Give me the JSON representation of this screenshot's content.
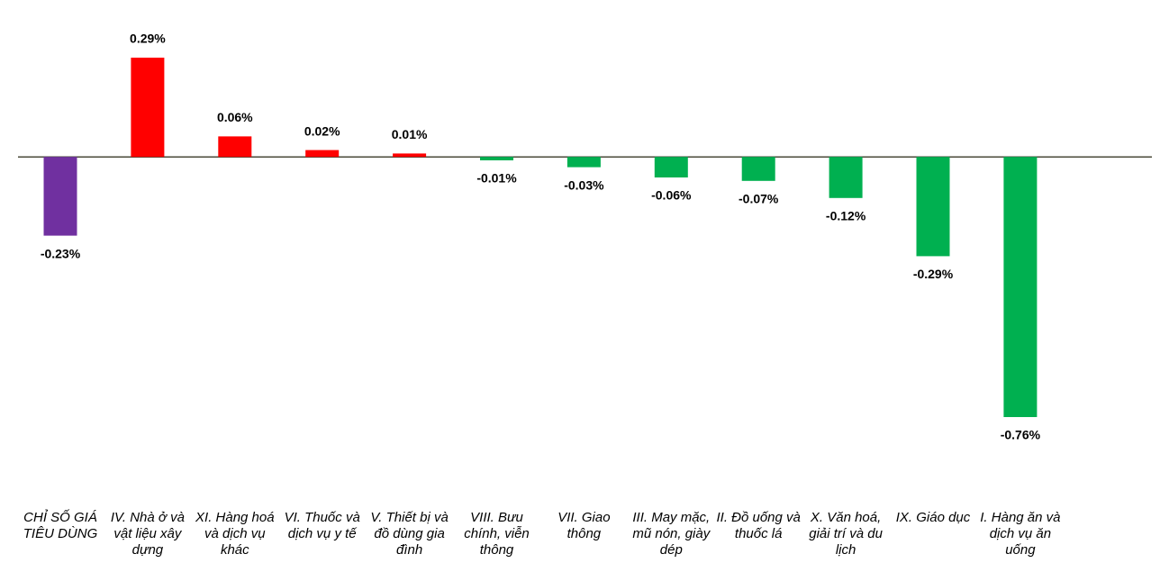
{
  "chart_data": {
    "type": "bar",
    "categories": [
      "CHỈ SỐ GIÁ TIÊU DÙNG",
      "IV. Nhà ở và vật liệu xây dựng",
      "XI. Hàng hoá và dịch vụ khác",
      "VI. Thuốc và dịch vụ y tế",
      "V. Thiết bị và đồ dùng gia đình",
      "VIII. Bưu chính, viễn thông",
      "VII. Giao thông",
      "III. May mặc, mũ nón, giày dép",
      "II. Đồ uống và thuốc lá",
      "X. Văn hoá, giải trí và du lịch",
      "IX. Giáo dục",
      "I. Hàng ăn và dịch vụ ăn uống"
    ],
    "values": [
      -0.23,
      0.29,
      0.06,
      0.02,
      0.01,
      -0.01,
      -0.03,
      -0.06,
      -0.07,
      -0.12,
      -0.29,
      -0.76
    ],
    "value_labels": [
      "-0.23%",
      "0.29%",
      "0.06%",
      "0.02%",
      "0.01%",
      "-0.01%",
      "-0.03%",
      "-0.06%",
      "-0.07%",
      "-0.12%",
      "-0.29%",
      "-0.76%"
    ],
    "colors": [
      "#7030a0",
      "#ff0000",
      "#ff0000",
      "#ff0000",
      "#ff0000",
      "#00b050",
      "#00b050",
      "#00b050",
      "#00b050",
      "#00b050",
      "#00b050",
      "#00b050"
    ]
  }
}
